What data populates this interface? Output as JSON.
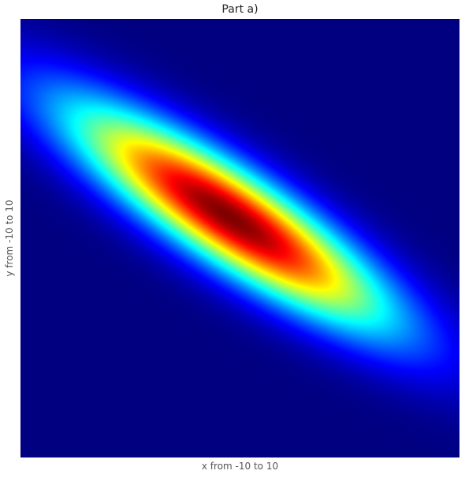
{
  "chart_data": {
    "type": "heatmap",
    "title": "Part a)",
    "xlabel": "x from -10 to 10",
    "ylabel": "y from -10 to 10",
    "xlim": [
      -10,
      10
    ],
    "ylim": [
      -10,
      10
    ],
    "grid": false,
    "colormap": "jet",
    "function": "bivariate gaussian density",
    "peak": {
      "x": -0.5,
      "y": 1
    },
    "covariance": {
      "var_x": 25,
      "var_y": 12,
      "cov_xy": -15
    },
    "ticks_visible": false
  }
}
